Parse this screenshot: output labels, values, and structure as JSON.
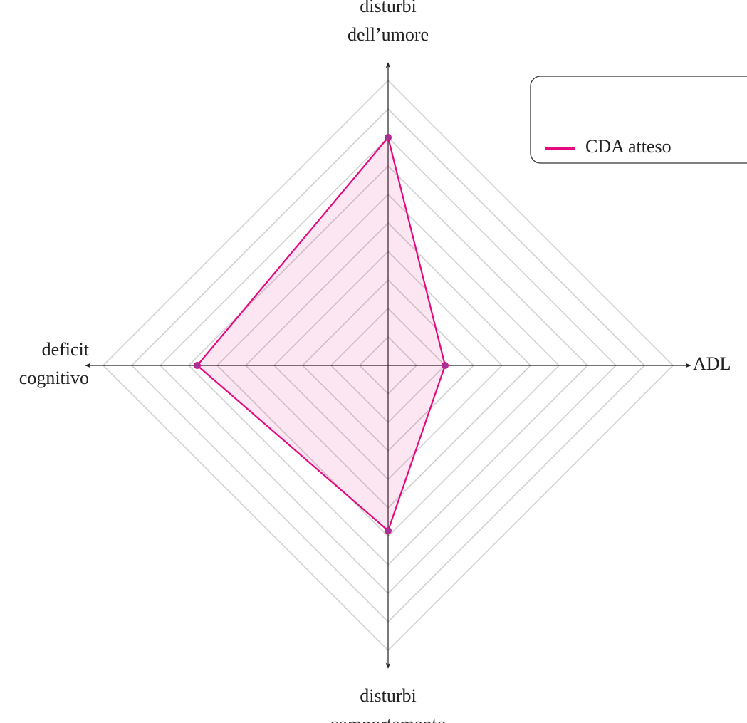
{
  "chart_data": {
    "type": "radar",
    "categories": [
      [
        "disturbi",
        "dell’umore"
      ],
      [
        "ADL"
      ],
      [
        "disturbi",
        "comportamento"
      ],
      [
        "deficit",
        "cognitivo"
      ]
    ],
    "series": [
      {
        "name": "CDA atteso",
        "color": "#e5097f",
        "marker_color": "#a23497",
        "values": [
          8,
          2,
          5.8,
          6.7
        ]
      }
    ],
    "rlim": [
      0,
      10
    ],
    "rticks": [
      1,
      2,
      3,
      4,
      5,
      6,
      7,
      8,
      9,
      10
    ],
    "grid": true,
    "legend": "upper right"
  }
}
